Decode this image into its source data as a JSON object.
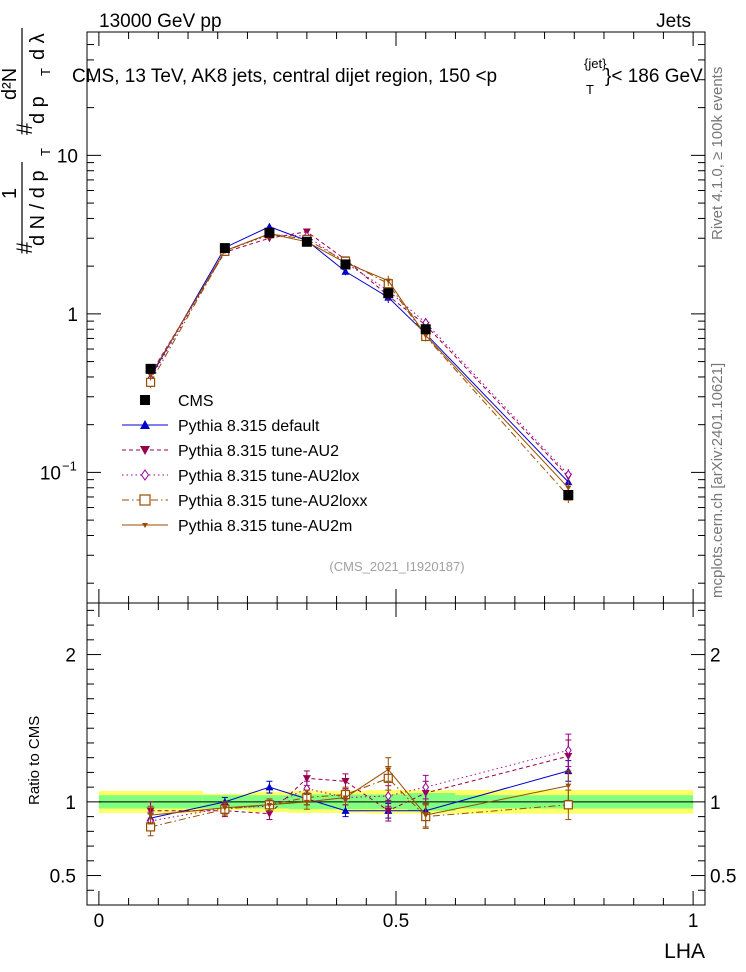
{
  "header": {
    "left": "13000 GeV pp",
    "right": "Jets"
  },
  "side_labels": {
    "rivet": "Rivet 4.1.0, ≥ 100k events",
    "mcplots": "mcplots.cern.ch [arXiv:2401.10621]"
  },
  "analysis_id": "(CMS_2021_I1920187)",
  "colors": {
    "data": "#000000",
    "band_stat": "#80ff80",
    "band_total": "#ffff66",
    "watermark": "#a0a0a0"
  },
  "chart_data": [
    {
      "id": "main",
      "type": "line",
      "title": "CMS, 13 TeV, AK8 jets, central dijet region, 150 <p",
      "title_sup": "{jet}",
      "title_sub": "T",
      "title_end": "}< 186 GeV",
      "yscale": "log",
      "ylim": [
        0.015,
        60
      ],
      "xlim": [
        -0.02,
        1.02
      ],
      "ylabel": {
        "hash1": "#",
        "one": "1",
        "dN_dpT": "d N / d p",
        "T1": "T",
        "hash2": "#",
        "dp_T": "d p",
        "T2": "T",
        "d2N": "d²N",
        "dlambda": "d λ"
      },
      "ytick_labels": [
        {
          "value": 10,
          "label": "10"
        },
        {
          "value": 1,
          "label": "1"
        },
        {
          "value": 0.1,
          "label": "10",
          "sup": "−1"
        }
      ],
      "legend_location": "lower-left",
      "data": {
        "name": "CMS",
        "x": [
          0.087,
          0.212,
          0.287,
          0.35,
          0.415,
          0.487,
          0.55,
          0.79
        ],
        "y": [
          0.45,
          2.6,
          3.25,
          2.85,
          2.05,
          1.35,
          0.8,
          0.072
        ],
        "err": [
          0.02,
          0.1,
          0.13,
          0.12,
          0.09,
          0.07,
          0.04,
          0.005
        ]
      },
      "series": [
        {
          "name": "Pythia 8.315 default",
          "color": "#0000cc",
          "marker": "triangle-up",
          "dash": "",
          "x": [
            0.087,
            0.212,
            0.287,
            0.35,
            0.415,
            0.487,
            0.55,
            0.79
          ],
          "y": [
            0.4,
            2.62,
            3.55,
            2.9,
            1.85,
            1.27,
            0.75,
            0.087
          ],
          "err": [
            0.03,
            0.1,
            0.13,
            0.12,
            0.1,
            0.1,
            0.05,
            0.008
          ]
        },
        {
          "name": "Pythia 8.315 tune-AU2",
          "color": "#99004c",
          "marker": "triangle-down",
          "dash": "4,3",
          "x": [
            0.087,
            0.212,
            0.287,
            0.35,
            0.415,
            0.487,
            0.55,
            0.79
          ],
          "y": [
            0.42,
            2.45,
            3.0,
            3.3,
            2.2,
            1.3,
            0.85,
            0.094
          ],
          "err": [
            0.03,
            0.1,
            0.13,
            0.13,
            0.1,
            0.1,
            0.06,
            0.008
          ]
        },
        {
          "name": "Pythia 8.315 tune-AU2lox",
          "color": "#990099",
          "marker": "diamond-open",
          "dash": "1.5,3",
          "x": [
            0.087,
            0.212,
            0.287,
            0.35,
            0.415,
            0.487,
            0.55,
            0.79
          ],
          "y": [
            0.39,
            2.5,
            3.15,
            3.1,
            2.1,
            1.4,
            0.88,
            0.097
          ],
          "err": [
            0.03,
            0.1,
            0.13,
            0.13,
            0.1,
            0.1,
            0.06,
            0.008
          ]
        },
        {
          "name": "Pythia 8.315 tune-AU2loxx",
          "color": "#994c00",
          "marker": "square-open",
          "dash": "7,3,1.5,3",
          "x": [
            0.087,
            0.212,
            0.287,
            0.35,
            0.415,
            0.487,
            0.55,
            0.79
          ],
          "y": [
            0.37,
            2.48,
            3.2,
            2.95,
            2.15,
            1.55,
            0.72,
            0.071
          ],
          "err": [
            0.03,
            0.1,
            0.13,
            0.12,
            0.1,
            0.12,
            0.05,
            0.007
          ]
        },
        {
          "name": "Pythia 8.315 tune-AU2m",
          "color": "#994c00",
          "marker": "star-small",
          "dash": "",
          "x": [
            0.087,
            0.212,
            0.287,
            0.35,
            0.415,
            0.487,
            0.55,
            0.79
          ],
          "y": [
            0.41,
            2.5,
            3.2,
            2.85,
            2.1,
            1.62,
            0.73,
            0.08
          ],
          "err": [
            0.03,
            0.1,
            0.13,
            0.12,
            0.1,
            0.12,
            0.05,
            0.007
          ]
        }
      ]
    },
    {
      "id": "ratio",
      "type": "line",
      "ylabel": "Ratio to CMS",
      "ylim": [
        0.3,
        2.35
      ],
      "xlim": [
        -0.02,
        1.02
      ],
      "xlabel": "LHA",
      "xtick_labels": [
        {
          "value": 0,
          "label": "0"
        },
        {
          "value": 0.5,
          "label": "0.5"
        },
        {
          "value": 1,
          "label": "1"
        }
      ],
      "ytick_labels": [
        {
          "value": 2,
          "label": "2"
        },
        {
          "value": 1,
          "label": "1"
        },
        {
          "value": 0.5,
          "label": "0.5"
        }
      ],
      "bands": [
        {
          "x0": 0.0,
          "x1": 0.175,
          "stat": 0.045,
          "total": 0.075
        },
        {
          "x0": 0.175,
          "x1": 0.25,
          "stat": 0.045,
          "total": 0.055
        },
        {
          "x0": 0.25,
          "x1": 0.32,
          "stat": 0.045,
          "total": 0.07
        },
        {
          "x0": 0.32,
          "x1": 0.38,
          "stat": 0.05,
          "total": 0.075
        },
        {
          "x0": 0.38,
          "x1": 0.45,
          "stat": 0.05,
          "total": 0.075
        },
        {
          "x0": 0.45,
          "x1": 0.52,
          "stat": 0.05,
          "total": 0.08
        },
        {
          "x0": 0.52,
          "x1": 0.6,
          "stat": 0.06,
          "total": 0.08
        },
        {
          "x0": 0.6,
          "x1": 1.0,
          "stat": 0.045,
          "total": 0.08
        }
      ],
      "series": [
        {
          "name": "Pythia 8.315 default",
          "color": "#0000cc",
          "marker": "triangle-up",
          "dash": "",
          "x": [
            0.087,
            0.212,
            0.287,
            0.35,
            0.415,
            0.487,
            0.55,
            0.79
          ],
          "y": [
            0.89,
            1.0,
            1.1,
            1.02,
            0.94,
            0.94,
            0.94,
            1.21
          ],
          "err": [
            0.03,
            0.03,
            0.04,
            0.04,
            0.04,
            0.05,
            0.05,
            0.07
          ]
        },
        {
          "name": "Pythia 8.315 tune-AU2",
          "color": "#99004c",
          "marker": "triangle-down",
          "dash": "4,3",
          "x": [
            0.087,
            0.212,
            0.287,
            0.35,
            0.415,
            0.487,
            0.55,
            0.79
          ],
          "y": [
            0.94,
            0.94,
            0.92,
            1.16,
            1.14,
            0.94,
            1.06,
            1.31
          ],
          "err": [
            0.06,
            0.04,
            0.04,
            0.05,
            0.05,
            0.07,
            0.08,
            0.11
          ]
        },
        {
          "name": "Pythia 8.315 tune-AU2lox",
          "color": "#990099",
          "marker": "diamond-open",
          "dash": "1.5,3",
          "x": [
            0.087,
            0.212,
            0.287,
            0.35,
            0.415,
            0.487,
            0.55,
            0.79
          ],
          "y": [
            0.87,
            0.96,
            0.97,
            1.09,
            1.03,
            1.04,
            1.1,
            1.35
          ],
          "err": [
            0.06,
            0.04,
            0.04,
            0.05,
            0.05,
            0.07,
            0.08,
            0.11
          ]
        },
        {
          "name": "Pythia 8.315 tune-AU2loxx",
          "color": "#994c00",
          "marker": "square-open",
          "dash": "7,3,1.5,3",
          "x": [
            0.087,
            0.212,
            0.287,
            0.35,
            0.415,
            0.487,
            0.55,
            0.79
          ],
          "y": [
            0.83,
            0.95,
            0.98,
            1.03,
            1.05,
            1.16,
            0.9,
            0.98
          ],
          "err": [
            0.06,
            0.04,
            0.04,
            0.05,
            0.05,
            0.08,
            0.08,
            0.1
          ]
        },
        {
          "name": "Pythia 8.315 tune-AU2m",
          "color": "#994c00",
          "marker": "star-small",
          "dash": "",
          "x": [
            0.087,
            0.212,
            0.287,
            0.35,
            0.415,
            0.487,
            0.55,
            0.79
          ],
          "y": [
            0.91,
            0.96,
            0.98,
            1.0,
            1.03,
            1.22,
            0.91,
            1.11
          ],
          "err": [
            0.06,
            0.04,
            0.04,
            0.05,
            0.05,
            0.08,
            0.08,
            0.1
          ]
        }
      ]
    }
  ]
}
